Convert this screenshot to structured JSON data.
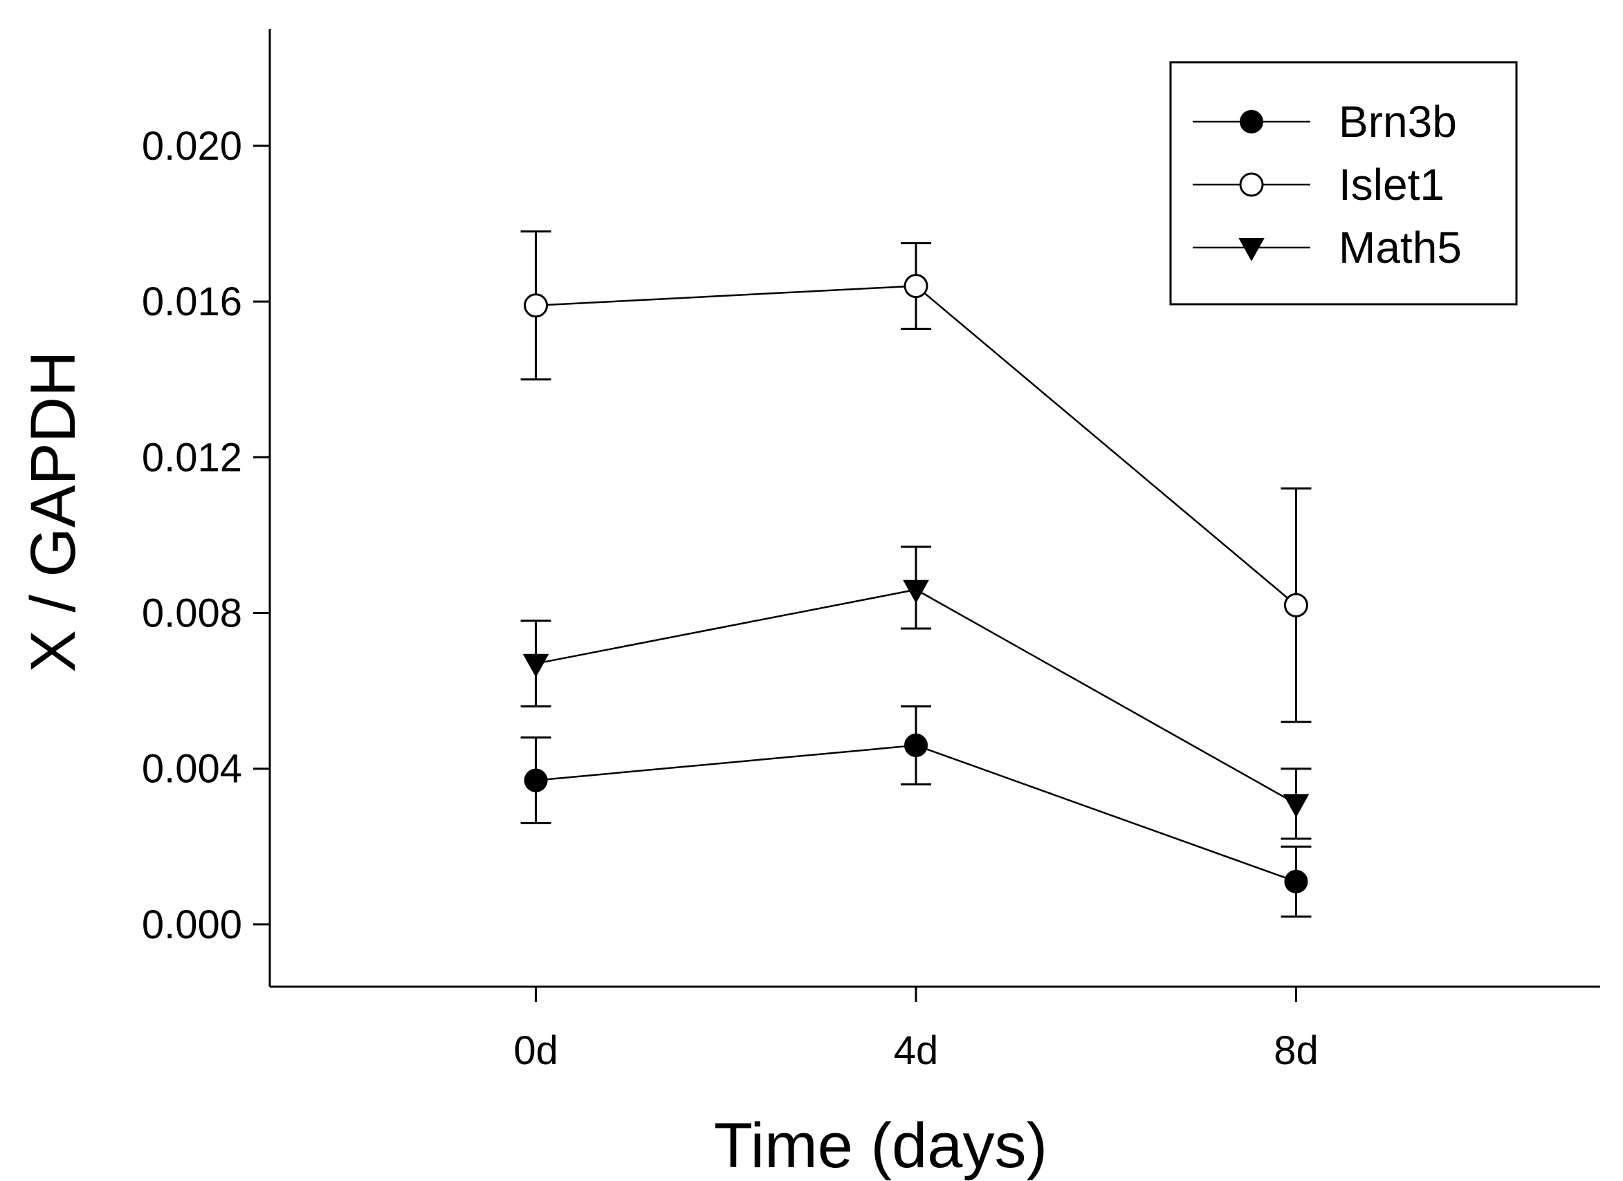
{
  "chart_data": {
    "type": "line",
    "xlabel": "Time (days)",
    "ylabel": "X / GAPDH",
    "categories": [
      "0d",
      "4d",
      "8d"
    ],
    "xlim": [
      -0.7,
      2.8
    ],
    "ylim": [
      -0.0016,
      0.023
    ],
    "yticks": [
      0.0,
      0.004,
      0.008,
      0.012,
      0.016,
      0.02
    ],
    "ytick_labels": [
      "0.000",
      "0.004",
      "0.008",
      "0.012",
      "0.016",
      "0.020"
    ],
    "grid": false,
    "legend_position": "top-right",
    "series": [
      {
        "name": "Brn3b",
        "marker": "circle-filled",
        "color": "#000000",
        "values": [
          0.0037,
          0.0046,
          0.0011
        ],
        "err_low": [
          0.0026,
          0.0036,
          0.0002
        ],
        "err_high": [
          0.0048,
          0.0056,
          0.002
        ]
      },
      {
        "name": "Islet1",
        "marker": "circle-open",
        "color": "#000000",
        "values": [
          0.0159,
          0.0164,
          0.0082
        ],
        "err_low": [
          0.014,
          0.0153,
          0.0052
        ],
        "err_high": [
          0.0178,
          0.0175,
          0.0112
        ]
      },
      {
        "name": "Math5",
        "marker": "triangle-down-filled",
        "color": "#000000",
        "values": [
          0.0067,
          0.0086,
          0.0031
        ],
        "err_low": [
          0.0056,
          0.0076,
          0.0022
        ],
        "err_high": [
          0.0078,
          0.0097,
          0.004
        ]
      }
    ]
  }
}
